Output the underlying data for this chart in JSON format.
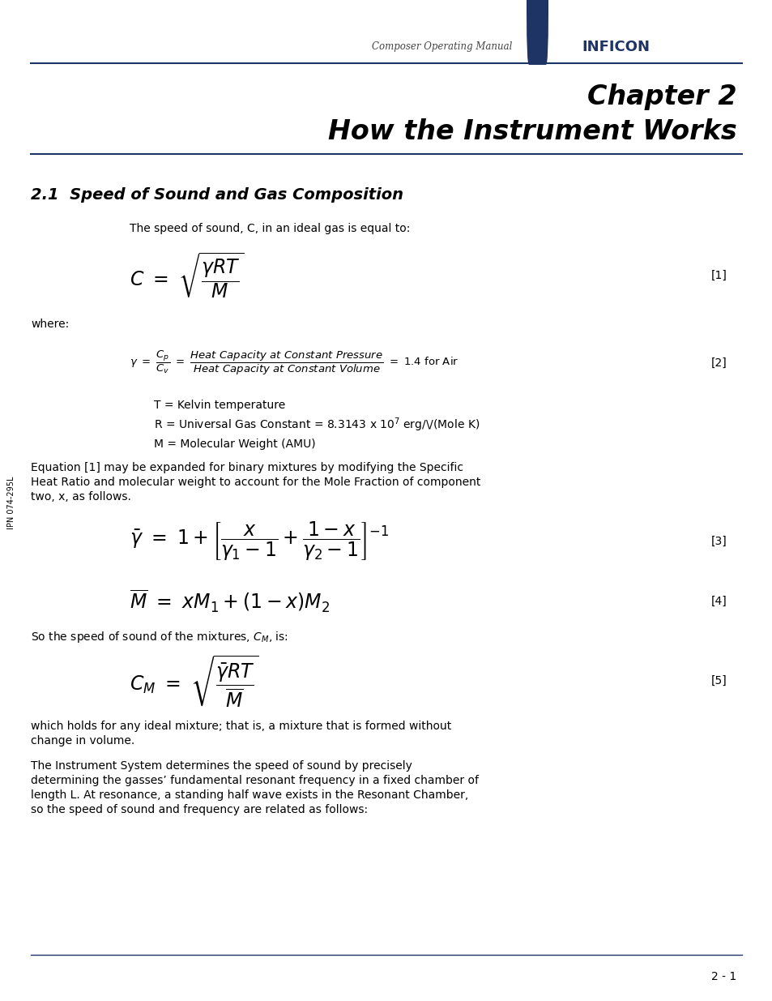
{
  "bg_color": "#ffffff",
  "header_text": "Composer Operating Manual",
  "inficon_text": "INFICON",
  "inficon_color": "#1e3464",
  "chapter_line1": "Chapter 2",
  "chapter_line2": "How the Instrument Works",
  "section_title": "2.1  Speed of Sound and Gas Composition",
  "line_color": "#1e3464",
  "page_number": "2 - 1",
  "side_text": "IPN 074-295L",
  "eq1_label": "[1]",
  "eq2_label": "[2]",
  "eq3_label": "[3]",
  "eq4_label": "[4]",
  "eq5_label": "[5]",
  "intro_text": "The speed of sound, C, in an ideal gas is equal to:",
  "where_text": "where:",
  "t_def": "T = Kelvin temperature",
  "r_def": "R = Universal Gas Constant = 8.3143 x 10$^7$ erg∕(Mole K)",
  "m_def": "M = Molecular Weight (AMU)",
  "para1_line1": "Equation [1] may be expanded for binary mixtures by modifying the Specific",
  "para1_line2": "Heat Ratio and molecular weight to account for the Mole Fraction of component",
  "para1_line3": "two, x, as follows.",
  "cm_text": "So the speed of sound of the mixtures, $C_M$, is:",
  "para2_line1": "which holds for any ideal mixture; that is, a mixture that is formed without",
  "para2_line2": "change in volume.",
  "para3_line1": "The Instrument System determines the speed of sound by precisely",
  "para3_line2": "determining the gasses’ fundamental resonant frequency in a fixed chamber of",
  "para3_line3": "length L. At resonance, a standing half wave exists in the Resonant Chamber,",
  "para3_line4": "so the speed of sound and frequency are related as follows:"
}
